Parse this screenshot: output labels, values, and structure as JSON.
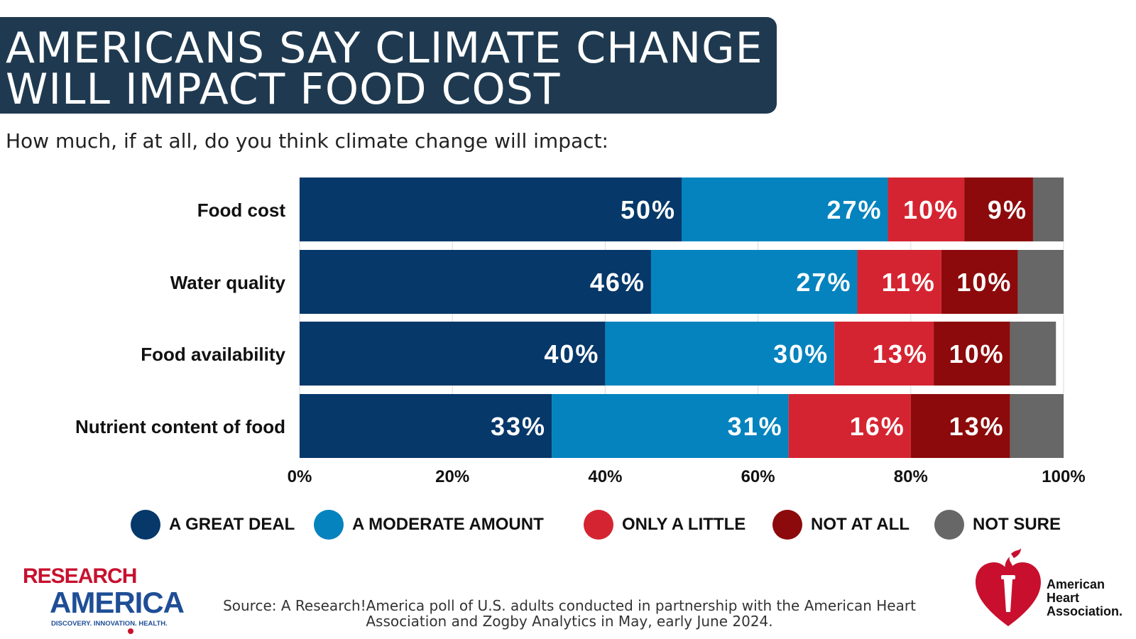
{
  "title": {
    "line1": "AMERICANS SAY CLIMATE CHANGE",
    "line2": "WILL IMPACT FOOD COST"
  },
  "subtitle": "How much, if at all, do you think climate change will impact:",
  "colors": {
    "title_bg": "#1f3a50",
    "great_deal": "#063869",
    "moderate": "#0583be",
    "little": "#d52431",
    "not_at_all": "#8c0a0b",
    "not_sure": "#676767"
  },
  "chart_data": {
    "type": "bar",
    "orientation": "horizontal",
    "stacked": true,
    "categories": [
      "Food cost",
      "Water quality",
      "Food availability",
      "Nutrient content of food"
    ],
    "series": [
      {
        "name": "A GREAT DEAL",
        "color": "#063869",
        "values": [
          50,
          46,
          40,
          33
        ],
        "labels": [
          "50%",
          "46%",
          "40%",
          "33%"
        ]
      },
      {
        "name": "A MODERATE AMOUNT",
        "color": "#0583be",
        "values": [
          27,
          27,
          30,
          31
        ],
        "labels": [
          "27%",
          "27%",
          "30%",
          "31%"
        ]
      },
      {
        "name": "ONLY A LITTLE",
        "color": "#d52431",
        "values": [
          10,
          11,
          13,
          16
        ],
        "labels": [
          "10%",
          "11%",
          "13%",
          "16%"
        ]
      },
      {
        "name": "NOT AT ALL",
        "color": "#8c0a0b",
        "values": [
          9,
          10,
          10,
          13
        ],
        "labels": [
          "9%",
          "10%",
          "10%",
          "13%"
        ]
      },
      {
        "name": "NOT SURE",
        "color": "#676767",
        "values": [
          4,
          6,
          6,
          7
        ],
        "labels": [
          "",
          "",
          "",
          ""
        ]
      }
    ],
    "xlim": [
      0,
      100
    ],
    "xticks": [
      "0%",
      "20%",
      "40%",
      "60%",
      "80%",
      "100%"
    ],
    "grid": true,
    "legend_position": "bottom"
  },
  "legend": [
    {
      "label": "A GREAT DEAL",
      "color": "#063869"
    },
    {
      "label": "A MODERATE AMOUNT",
      "color": "#0583be"
    },
    {
      "label": "ONLY A LITTLE",
      "color": "#d52431"
    },
    {
      "label": "NOT AT ALL",
      "color": "#8c0a0b"
    },
    {
      "label": "NOT SURE",
      "color": "#676767"
    }
  ],
  "logo_left": {
    "line1": "RESEARCH",
    "line2": "AMERICA",
    "tagline": "DISCOVERY. INNOVATION. HEALTH."
  },
  "source": {
    "line1": "Source:  A Research!America poll of U.S. adults conducted in partnership with the American Heart",
    "line2": "Association and Zogby Analytics in May, early June 2024."
  },
  "logo_right": {
    "line1": "American",
    "line2": "Heart",
    "line3": "Association."
  }
}
